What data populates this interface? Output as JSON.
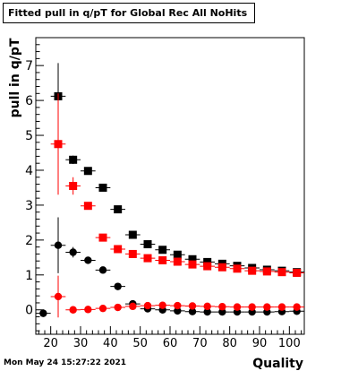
{
  "title": "Fitted pull in q/pT for Global Rec All NoHits",
  "footer_date": "Mon May 24 15:27:22 2021",
  "colors": {
    "black_series": "#000000",
    "red_series": "#ff0000"
  },
  "chart_data": {
    "type": "scatter",
    "title": "Fitted pull in q/pT for Global Rec All NoHits",
    "xlabel": "Quality",
    "ylabel": "pull in q/pT",
    "xlim": [
      15,
      105
    ],
    "ylim": [
      -0.7,
      7.8
    ],
    "x_ticks": [
      20,
      30,
      40,
      50,
      60,
      70,
      80,
      90,
      100
    ],
    "y_ticks": [
      0,
      1,
      2,
      3,
      4,
      5,
      6,
      7
    ],
    "grid": false,
    "series": [
      {
        "color": "#000000",
        "marker": "square",
        "x": [
          22.5,
          27.5,
          32.5,
          37.5,
          42.5,
          47.5,
          52.5,
          57.5,
          62.5,
          67.5,
          72.5,
          77.5,
          82.5,
          87.5,
          92.5,
          97.5,
          102.5
        ],
        "y": [
          6.12,
          4.3,
          3.98,
          3.5,
          2.88,
          2.15,
          1.88,
          1.72,
          1.58,
          1.45,
          1.37,
          1.32,
          1.26,
          1.2,
          1.15,
          1.12,
          1.08
        ],
        "err": [
          0.95,
          0.12,
          0.06,
          0.05,
          0.04,
          0.03,
          0.03,
          0.03,
          0.02,
          0.02,
          0.02,
          0.02,
          0.02,
          0.02,
          0.02,
          0.02,
          0.02
        ]
      },
      {
        "color": "#ff0000",
        "marker": "square",
        "x": [
          22.5,
          27.5,
          32.5,
          37.5,
          42.5,
          47.5,
          52.5,
          57.5,
          62.5,
          67.5,
          72.5,
          77.5,
          82.5,
          87.5,
          92.5,
          97.5,
          102.5
        ],
        "y": [
          4.75,
          3.55,
          2.98,
          2.07,
          1.74,
          1.6,
          1.48,
          1.42,
          1.38,
          1.3,
          1.25,
          1.22,
          1.18,
          1.12,
          1.1,
          1.08,
          1.06
        ],
        "err": [
          1.45,
          0.25,
          0.08,
          0.06,
          0.04,
          0.03,
          0.03,
          0.03,
          0.02,
          0.02,
          0.02,
          0.02,
          0.02,
          0.02,
          0.02,
          0.02,
          0.02
        ]
      },
      {
        "color": "#000000",
        "marker": "circle",
        "x": [
          17.5,
          22.5,
          27.5,
          32.5,
          37.5,
          42.5,
          47.5,
          52.5,
          57.5,
          62.5,
          67.5,
          72.5,
          77.5,
          82.5,
          87.5,
          92.5,
          97.5,
          102.5
        ],
        "y": [
          -0.1,
          1.85,
          1.65,
          1.42,
          1.14,
          0.67,
          0.17,
          0.03,
          0.0,
          -0.03,
          -0.05,
          -0.06,
          -0.06,
          -0.06,
          -0.06,
          -0.06,
          -0.05,
          -0.04
        ],
        "err": [
          0.05,
          0.8,
          0.15,
          0.05,
          0.04,
          0.03,
          0.02,
          0.02,
          0.02,
          0.02,
          0.01,
          0.01,
          0.01,
          0.01,
          0.01,
          0.01,
          0.01,
          0.01
        ]
      },
      {
        "color": "#ff0000",
        "marker": "circle",
        "x": [
          22.5,
          27.5,
          32.5,
          37.5,
          42.5,
          47.5,
          52.5,
          57.5,
          62.5,
          67.5,
          72.5,
          77.5,
          82.5,
          87.5,
          92.5,
          97.5,
          102.5
        ],
        "y": [
          0.38,
          0.0,
          0.01,
          0.04,
          0.07,
          0.1,
          0.12,
          0.13,
          0.12,
          0.11,
          0.1,
          0.09,
          0.08,
          0.08,
          0.08,
          0.08,
          0.08
        ],
        "err": [
          0.6,
          0.05,
          0.03,
          0.02,
          0.02,
          0.02,
          0.02,
          0.02,
          0.02,
          0.01,
          0.01,
          0.01,
          0.01,
          0.01,
          0.01,
          0.01,
          0.01
        ]
      }
    ]
  }
}
